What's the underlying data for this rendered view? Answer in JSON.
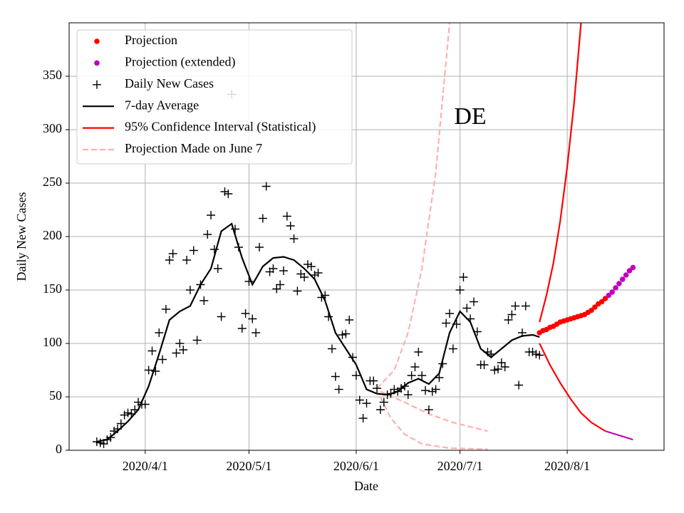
{
  "chart_data": {
    "type": "line",
    "annotation": "DE",
    "x_label": "Date",
    "y_label": "Daily New Cases",
    "xlim": [
      "2020-03-10",
      "2020-08-29"
    ],
    "xticks": [
      {
        "value": "2020-04-01",
        "label": "2020/4/1"
      },
      {
        "value": "2020-05-01",
        "label": "2020/5/1"
      },
      {
        "value": "2020-06-01",
        "label": "2020/6/1"
      },
      {
        "value": "2020-07-01",
        "label": "2020/7/1"
      },
      {
        "value": "2020-08-01",
        "label": "2020/8/1"
      }
    ],
    "ylim": [
      0,
      400
    ],
    "yticks": [
      0,
      50,
      100,
      150,
      200,
      250,
      300,
      350
    ],
    "grid": true,
    "legend": "upper left",
    "daily": {
      "name": "Daily New Cases",
      "color": "#000000",
      "start": "2020-03-18",
      "values": [
        8,
        7,
        6,
        10,
        12,
        18,
        20,
        25,
        33,
        35,
        34,
        38,
        45,
        43,
        43,
        75,
        93,
        74,
        110,
        85,
        132,
        178,
        184,
        91,
        100,
        94,
        178,
        150,
        187,
        103,
        155,
        140,
        202,
        220,
        188,
        170,
        125,
        242,
        240,
        333,
        207,
        190,
        114,
        128,
        158,
        123,
        110,
        190,
        217,
        247,
        167,
        170,
        151,
        155,
        168,
        219,
        210,
        198,
        149,
        165,
        162,
        174,
        172,
        164,
        166,
        143,
        145,
        125,
        95,
        69,
        57,
        108,
        109,
        122,
        87,
        70,
        47,
        30,
        44,
        65,
        65,
        58,
        38,
        45,
        52,
        53,
        57,
        55,
        58,
        60,
        52,
        70,
        78,
        92,
        70,
        56,
        38,
        55,
        57,
        68,
        81,
        119,
        128,
        95,
        118,
        150,
        162,
        133,
        123,
        139,
        111,
        80,
        80,
        92,
        90,
        75,
        76,
        82,
        78,
        122,
        127,
        135,
        61,
        110,
        135,
        92,
        92,
        90,
        89
      ]
    },
    "average": {
      "name": "7-day Average",
      "color": "#000000",
      "x": [
        "2020-03-18",
        "2020-03-21",
        "2020-03-24",
        "2020-03-27",
        "2020-03-30",
        "2020-04-02",
        "2020-04-05",
        "2020-04-08",
        "2020-04-11",
        "2020-04-14",
        "2020-04-17",
        "2020-04-20",
        "2020-04-23",
        "2020-04-26",
        "2020-04-29",
        "2020-05-02",
        "2020-05-05",
        "2020-05-08",
        "2020-05-11",
        "2020-05-14",
        "2020-05-17",
        "2020-05-20",
        "2020-05-23",
        "2020-05-26",
        "2020-05-29",
        "2020-06-01",
        "2020-06-04",
        "2020-06-07",
        "2020-06-10",
        "2020-06-13",
        "2020-06-16",
        "2020-06-19",
        "2020-06-22",
        "2020-06-25",
        "2020-06-28",
        "2020-07-01",
        "2020-07-04",
        "2020-07-07",
        "2020-07-10",
        "2020-07-13",
        "2020-07-16",
        "2020-07-19",
        "2020-07-22",
        "2020-07-24"
      ],
      "values": [
        8,
        10,
        18,
        27,
        38,
        60,
        90,
        122,
        130,
        135,
        155,
        170,
        205,
        212,
        180,
        155,
        172,
        180,
        181,
        178,
        170,
        160,
        140,
        110,
        95,
        80,
        57,
        53,
        52,
        55,
        63,
        67,
        62,
        72,
        110,
        130,
        120,
        95,
        87,
        95,
        103,
        107,
        108,
        106
      ]
    },
    "projection": {
      "name": "Projection",
      "color": "#ff0000",
      "start": "2020-07-24",
      "values": [
        110,
        112,
        113,
        115,
        116,
        118,
        120,
        121,
        122,
        123,
        124,
        125,
        126,
        127,
        129,
        131,
        134,
        137,
        139,
        142
      ]
    },
    "projection_extended": {
      "name": "Projection (extended)",
      "color": "#bf00bf",
      "start": "2020-08-13",
      "values": [
        145,
        148,
        152,
        156,
        160,
        164,
        168,
        171
      ]
    },
    "confidence_interval": {
      "name": "95% Confidence Interval (Statistical)",
      "color": "#ff0000",
      "extended_color": "#bf00bf",
      "upper": {
        "x": [
          "2020-07-24",
          "2020-07-26",
          "2020-07-28",
          "2020-07-30",
          "2020-08-01",
          "2020-08-03",
          "2020-08-05"
        ],
        "values": [
          120,
          145,
          175,
          215,
          265,
          325,
          400
        ]
      },
      "lower": {
        "x": [
          "2020-07-24",
          "2020-07-27",
          "2020-07-30",
          "2020-08-02",
          "2020-08-05",
          "2020-08-08",
          "2020-08-12"
        ],
        "values": [
          100,
          80,
          63,
          48,
          35,
          26,
          18
        ]
      },
      "lower_extended": {
        "x": [
          "2020-08-12",
          "2020-08-16",
          "2020-08-20"
        ],
        "values": [
          18,
          14,
          10
        ]
      }
    },
    "june7": {
      "name": "Projection Made on June 7",
      "color": "#ffb0b0",
      "lines": [
        {
          "x": [
            "2020-06-07",
            "2020-06-12",
            "2020-06-16",
            "2020-06-20",
            "2020-06-24",
            "2020-06-28"
          ],
          "values": [
            58,
            75,
            110,
            170,
            260,
            400
          ]
        },
        {
          "x": [
            "2020-06-08",
            "2020-06-15",
            "2020-06-22",
            "2020-06-29",
            "2020-07-09"
          ],
          "values": [
            55,
            45,
            34,
            26,
            18
          ]
        },
        {
          "x": [
            "2020-06-08",
            "2020-06-11",
            "2020-06-15",
            "2020-06-20",
            "2020-06-28",
            "2020-07-09"
          ],
          "values": [
            50,
            30,
            15,
            6,
            2,
            1
          ]
        }
      ]
    }
  }
}
